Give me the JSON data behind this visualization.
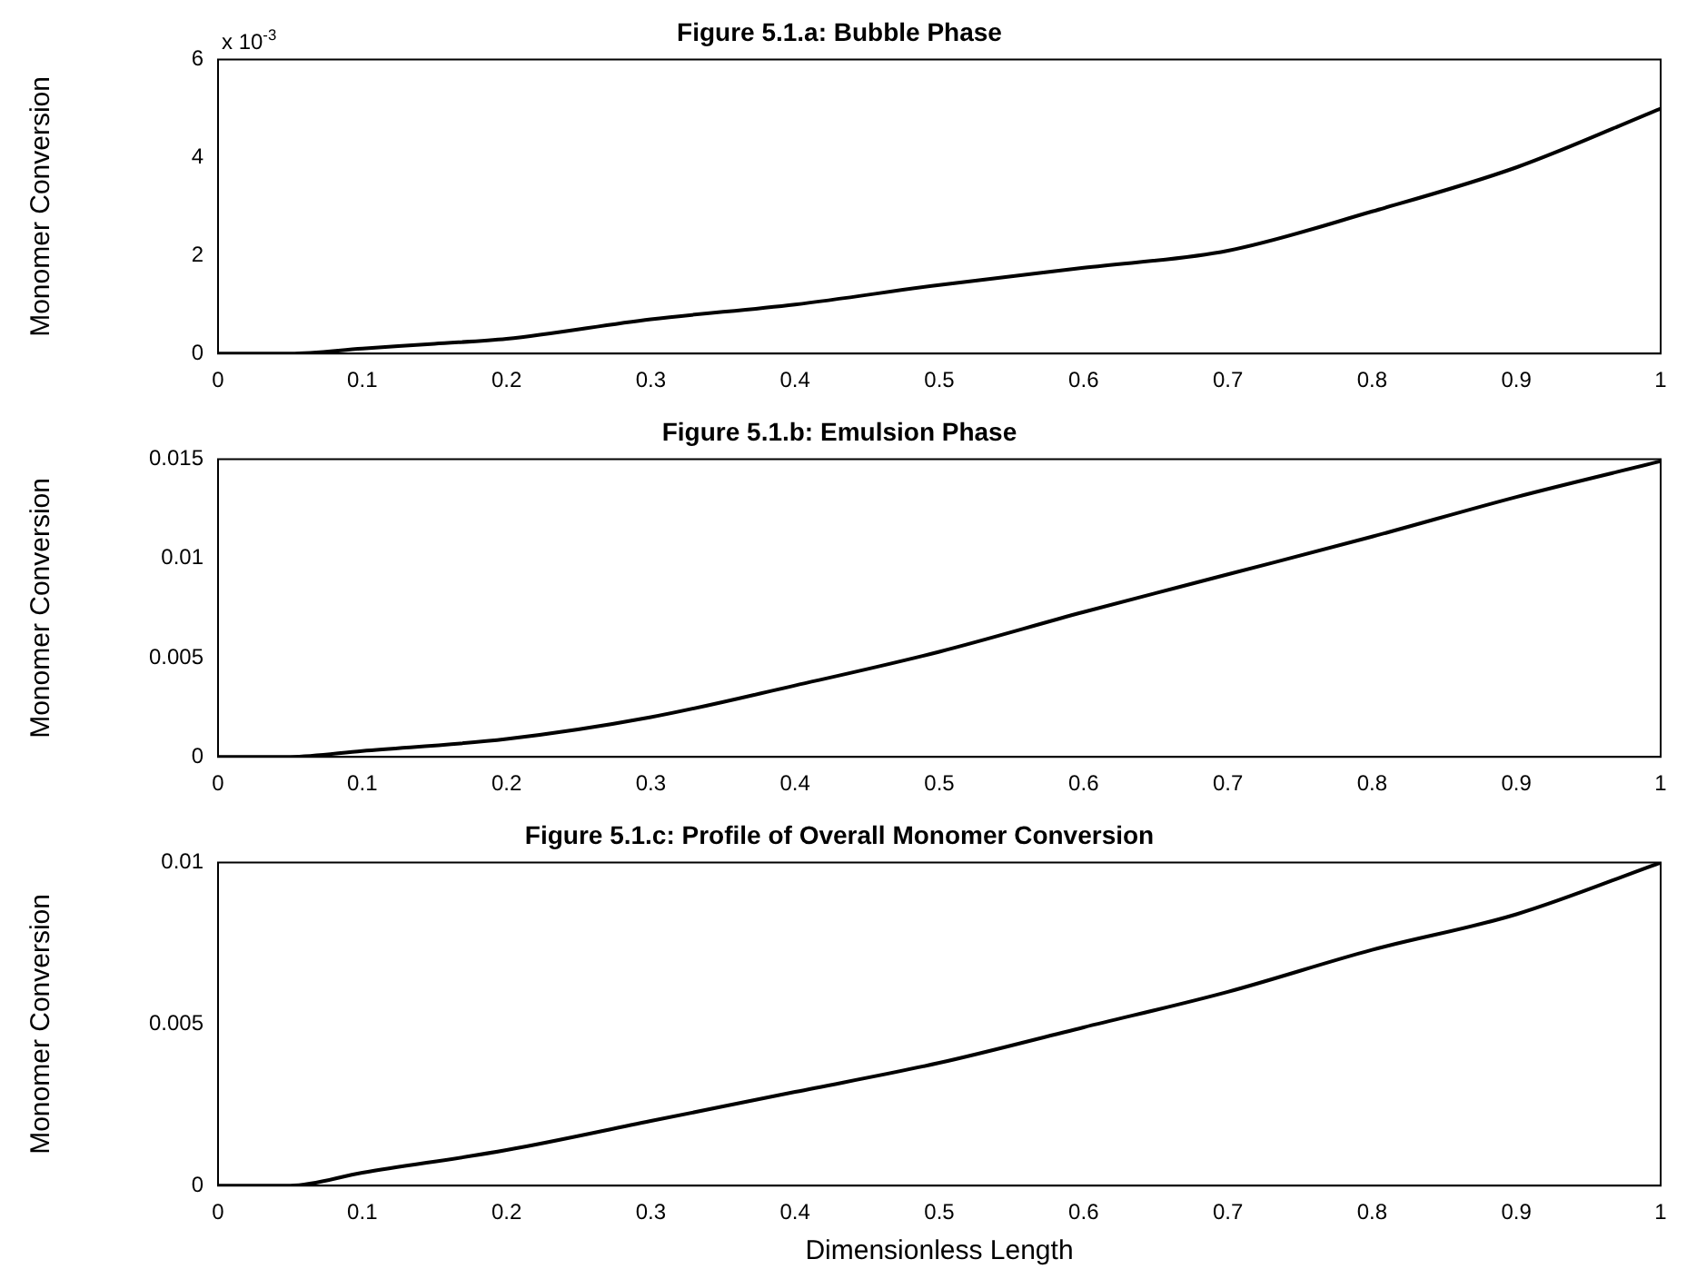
{
  "chart_data": [
    {
      "type": "line",
      "title": "Figure 5.1.a: Bubble Phase",
      "ylabel": "Monomer Conversion",
      "annotations": [
        "x 10$^{-3}$"
      ],
      "marker": "none",
      "x": [
        0,
        0.05,
        0.1,
        0.15,
        0.2,
        0.3,
        0.4,
        0.5,
        0.6,
        0.7,
        0.8,
        0.9,
        1
      ],
      "series": [
        {
          "color": "#000000",
          "values": [
            0,
            0,
            0.1,
            0.2,
            0.3,
            0.7,
            1,
            1.4,
            1.75,
            2.1,
            2.9,
            3.8,
            5
          ]
        }
      ],
      "xlim": [
        0,
        1
      ],
      "xticks": [
        0,
        0.1,
        0.2,
        0.3,
        0.4,
        0.5,
        0.6,
        0.7,
        0.8,
        0.9,
        1
      ],
      "ylim": [
        0,
        6
      ],
      "yticks": [
        0,
        2,
        4,
        6
      ]
    },
    {
      "type": "line",
      "title": "Figure 5.1.b: Emulsion Phase",
      "ylabel": "Monomer Conversion",
      "marker": "none",
      "x": [
        0,
        0.05,
        0.1,
        0.2,
        0.3,
        0.4,
        0.5,
        0.6,
        0.7,
        0.8,
        0.9,
        1
      ],
      "series": [
        {
          "color": "#000000",
          "values": [
            0,
            0,
            0.0003,
            0.0009,
            0.002,
            0.0036,
            0.0053,
            0.0073,
            0.0092,
            0.0111,
            0.0131,
            0.0149
          ]
        }
      ],
      "xlim": [
        0,
        1
      ],
      "xticks": [
        0,
        0.1,
        0.2,
        0.3,
        0.4,
        0.5,
        0.6,
        0.7,
        0.8,
        0.9,
        1
      ],
      "ylim": [
        0,
        0.015
      ],
      "yticks": [
        0,
        0.005,
        0.01,
        0.015
      ]
    },
    {
      "type": "line",
      "title": "Figure 5.1.c: Profile of Overall Monomer Conversion",
      "xlabel": "Dimensionless Length",
      "ylabel": "Monomer Conversion",
      "marker": "none",
      "x": [
        0,
        0.05,
        0.1,
        0.2,
        0.3,
        0.4,
        0.5,
        0.6,
        0.7,
        0.8,
        0.9,
        1
      ],
      "series": [
        {
          "color": "#000000",
          "values": [
            0,
            0,
            0.0004,
            0.0011,
            0.002,
            0.0029,
            0.0038,
            0.0049,
            0.006,
            0.0073,
            0.0084,
            0.01
          ]
        }
      ],
      "xlim": [
        0,
        1
      ],
      "xticks": [
        0,
        0.1,
        0.2,
        0.3,
        0.4,
        0.5,
        0.6,
        0.7,
        0.8,
        0.9,
        1
      ],
      "ylim": [
        0,
        0.01
      ],
      "yticks": [
        0,
        0.005,
        0.01
      ]
    }
  ]
}
